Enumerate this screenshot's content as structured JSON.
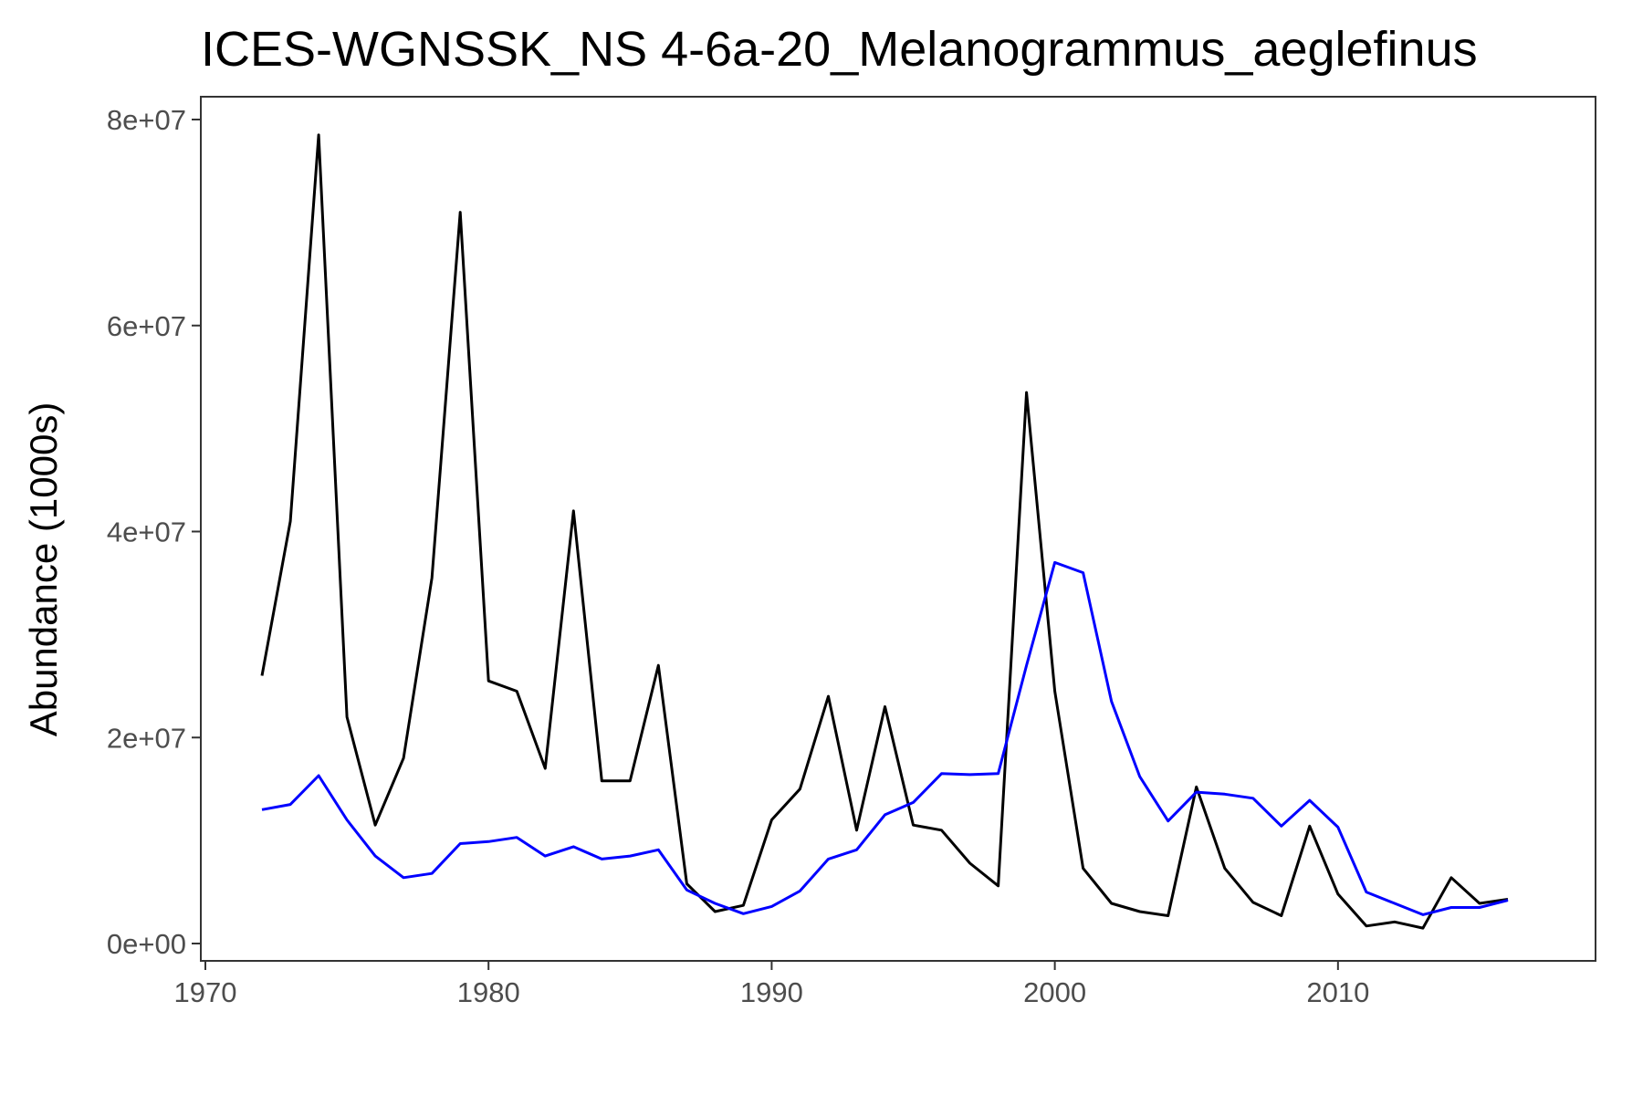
{
  "chart_data": {
    "type": "line",
    "title": "ICES-WGNSSK_NS  4-6a-20_Melanogrammus_aeglefinus",
    "xlabel": "",
    "ylabel": "Abundance (1000s)",
    "xlim": [
      1970,
      2018
    ],
    "ylim": [
      0,
      80000000
    ],
    "x_ticks": [
      1970,
      1980,
      1990,
      2000,
      2010
    ],
    "x_tick_labels": [
      "1970",
      "1980",
      "1990",
      "2000",
      "2010"
    ],
    "y_ticks": [
      0,
      20000000,
      40000000,
      60000000,
      80000000
    ],
    "y_tick_labels": [
      "0e+00",
      "2e+07",
      "4e+07",
      "6e+07",
      "8e+07"
    ],
    "grid": false,
    "legend": "none",
    "x": [
      1972,
      1973,
      1974,
      1975,
      1976,
      1977,
      1978,
      1979,
      1980,
      1981,
      1982,
      1983,
      1984,
      1985,
      1986,
      1987,
      1988,
      1989,
      1990,
      1991,
      1992,
      1993,
      1994,
      1995,
      1996,
      1997,
      1998,
      1999,
      2000,
      2001,
      2002,
      2003,
      2004,
      2005,
      2006,
      2007,
      2008,
      2009,
      2010,
      2011,
      2012,
      2013,
      2014,
      2015,
      2016
    ],
    "series": [
      {
        "color": "#000000",
        "values": [
          26000000,
          41000000,
          78500000,
          22000000,
          11500000,
          18000000,
          35500000,
          71000000,
          25500000,
          24500000,
          17000000,
          42000000,
          15800000,
          15800000,
          27000000,
          5800000,
          3100000,
          3700000,
          12000000,
          15000000,
          24000000,
          11000000,
          23000000,
          11500000,
          11000000,
          7800000,
          5600000,
          53500000,
          24500000,
          7300000,
          3900000,
          3100000,
          2700000,
          15200000,
          7300000,
          4000000,
          2700000,
          11400000,
          4800000,
          1700000,
          2100000,
          1500000,
          6400000,
          3900000,
          4300000
        ]
      },
      {
        "color": "#0000ff",
        "values": [
          13000000,
          13500000,
          16300000,
          12000000,
          8500000,
          6400000,
          6800000,
          9700000,
          9900000,
          10300000,
          8500000,
          9400000,
          8200000,
          8500000,
          9100000,
          5200000,
          3900000,
          2900000,
          3600000,
          5100000,
          8200000,
          9100000,
          12500000,
          13700000,
          16500000,
          16400000,
          16500000,
          27000000,
          37000000,
          36000000,
          23500000,
          16200000,
          11900000,
          14700000,
          14500000,
          14100000,
          11400000,
          13900000,
          11300000,
          5000000,
          3900000,
          2800000,
          3500000,
          3500000,
          4200000
        ]
      }
    ]
  }
}
